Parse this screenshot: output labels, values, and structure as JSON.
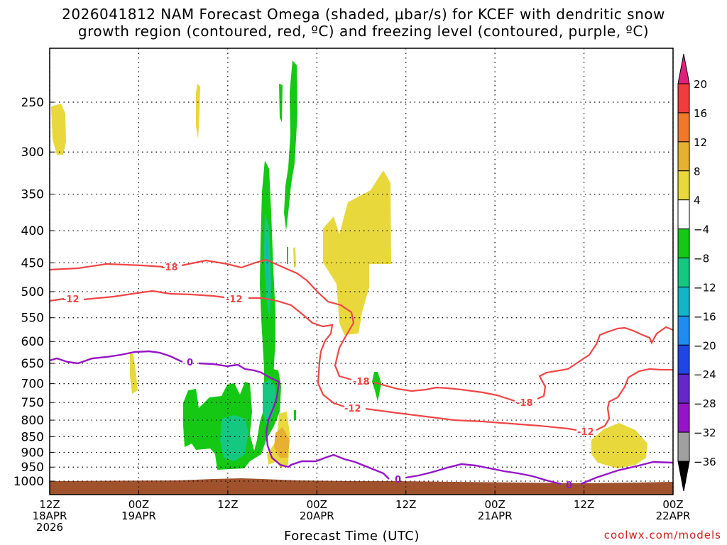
{
  "chart_data": {
    "type": "time-height cross section",
    "title_line1": "2026041812 NAM Forecast Omega (shaded, μbar/s) for KCEF with dendritic snow",
    "title_line2": "growth region (contoured, red, ºC) and freezing level (contoured, purple, ºC)",
    "xlabel": "Forecast Time (UTC)",
    "yaxis_ticks": [
      "250",
      "300",
      "350",
      "400",
      "450",
      "500",
      "550",
      "600",
      "650",
      "700",
      "750",
      "800",
      "850",
      "900",
      "950",
      "1000"
    ],
    "yaxis_values_hpa": [
      250,
      300,
      350,
      400,
      450,
      500,
      550,
      600,
      650,
      700,
      750,
      800,
      850,
      900,
      950,
      1000
    ],
    "xaxis_ticks": [
      {
        "hours": 0,
        "line1": "12Z",
        "line2": "18APR",
        "line3": "2026"
      },
      {
        "hours": 12,
        "line1": "00Z",
        "line2": "19APR",
        "line3": ""
      },
      {
        "hours": 24,
        "line1": "12Z",
        "line2": "",
        "line3": ""
      },
      {
        "hours": 36,
        "line1": "00Z",
        "line2": "20APR",
        "line3": ""
      },
      {
        "hours": 48,
        "line1": "12Z",
        "line2": "",
        "line3": ""
      },
      {
        "hours": 60,
        "line1": "00Z",
        "line2": "21APR",
        "line3": ""
      },
      {
        "hours": 72,
        "line1": "12Z",
        "line2": "",
        "line3": ""
      },
      {
        "hours": 84,
        "line1": "00Z",
        "line2": "22APR",
        "line3": ""
      }
    ],
    "colorbar": {
      "labels": [
        "20",
        "16",
        "12",
        "8",
        "4",
        "−4",
        "−8",
        "−12",
        "−16",
        "−20",
        "−24",
        "−28",
        "−32",
        "−36"
      ],
      "colors": [
        "#e0207a",
        "#f03c3c",
        "#f07828",
        "#e8b030",
        "#e8d83c",
        "#ffffff",
        "#14c814",
        "#14c882",
        "#14b4c8",
        "#1e8cf0",
        "#1e46e6",
        "#6428c8",
        "#9614c8",
        "#a0a0a0",
        "#000000"
      ]
    },
    "contour_labels": {
      "dgz": [
        "-18",
        "-12"
      ],
      "freezing": "0"
    },
    "colors": {
      "dgz_contour": "#f04646",
      "freezing_contour": "#9614c8",
      "terrain": "#a0522d"
    },
    "footer": "coolwx.com/models"
  }
}
